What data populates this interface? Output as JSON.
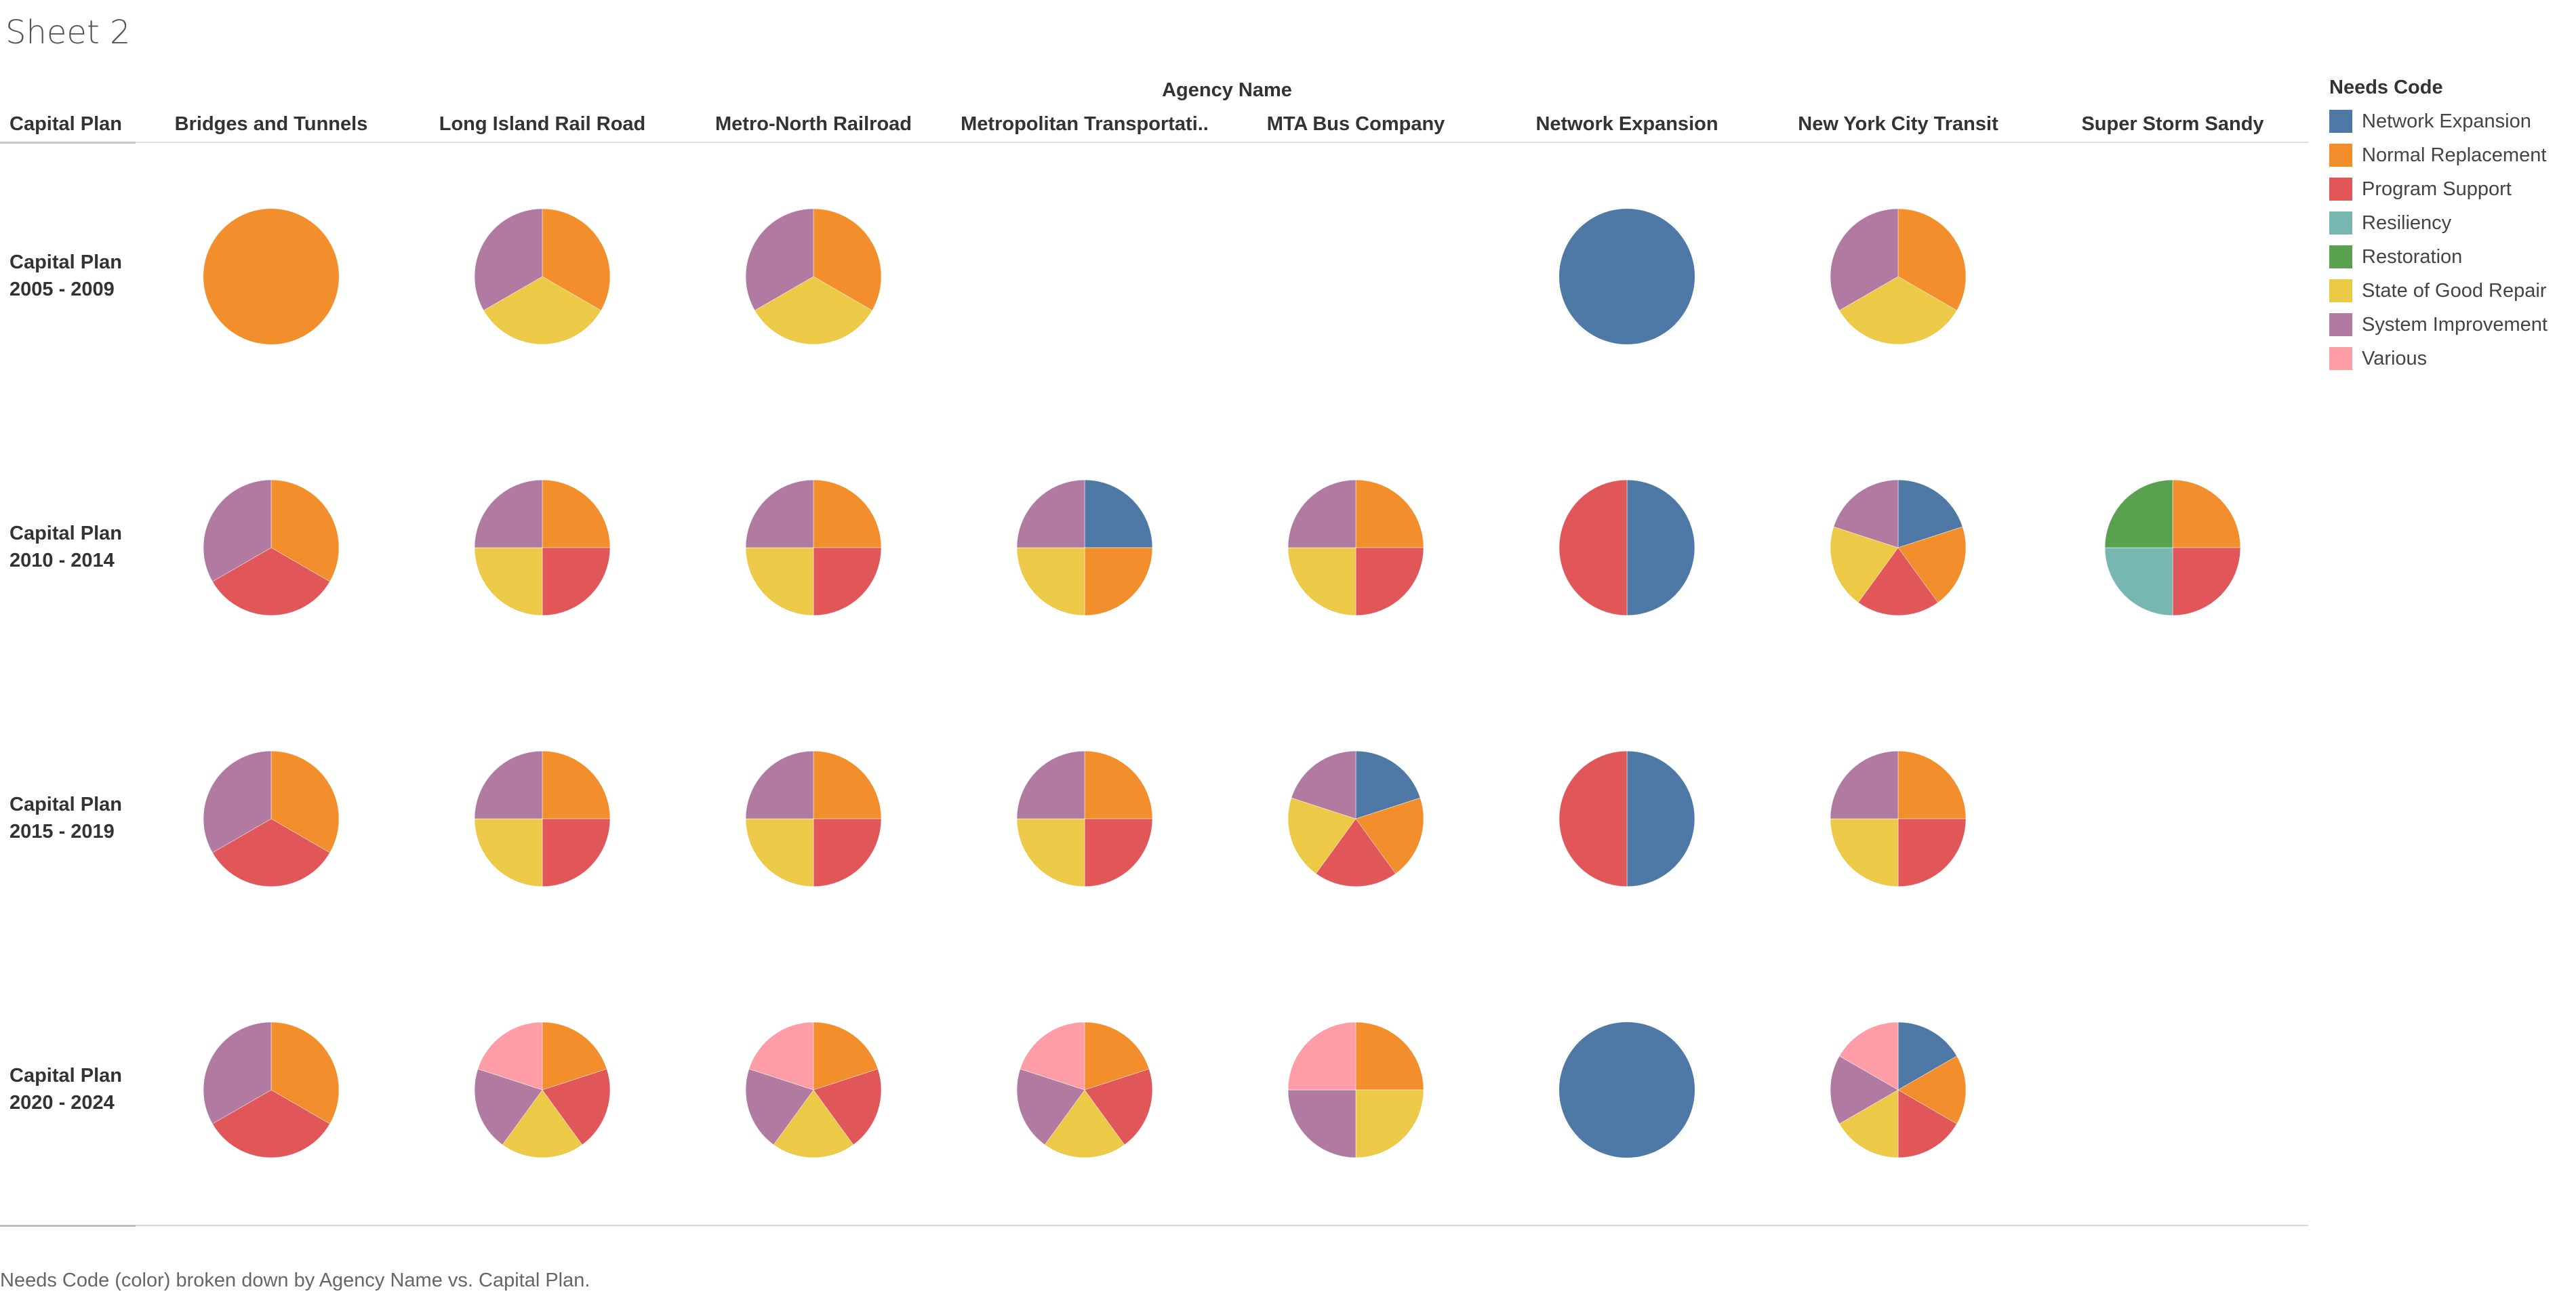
{
  "sheet_title": "Sheet 2",
  "caption": "Needs Code (color) broken down by Agency Name vs. Capital Plan.",
  "legend": {
    "title": "Needs Code",
    "items": [
      {
        "label": "Network Expansion",
        "color": "#4e79a7"
      },
      {
        "label": "Normal Replacement",
        "color": "#f28e2b"
      },
      {
        "label": "Program Support",
        "color": "#e15759"
      },
      {
        "label": "Resiliency",
        "color": "#76b7b2"
      },
      {
        "label": "Restoration",
        "color": "#59a14f"
      },
      {
        "label": "State of Good Repair",
        "color": "#edc948"
      },
      {
        "label": "System Improvement",
        "color": "#b07aa1"
      },
      {
        "label": "Various",
        "color": "#ff9da7"
      }
    ]
  },
  "chart_data": {
    "type": "pie",
    "column_group_label": "Agency Name",
    "row_header_label": "Capital Plan",
    "columns": [
      "Bridges and Tunnels",
      "Long Island Rail Road",
      "Metro-North Railroad",
      "Metropolitan Transportati..",
      "MTA Bus Company",
      "Network Expansion",
      "New York City Transit",
      "Super Storm Sandy"
    ],
    "rows": [
      {
        "line1": "Capital Plan",
        "line2": "2005 - 2009"
      },
      {
        "line1": "Capital Plan",
        "line2": "2010 - 2014"
      },
      {
        "line1": "Capital Plan",
        "line2": "2015 - 2019"
      },
      {
        "line1": "Capital Plan",
        "line2": "2020 - 2024"
      }
    ],
    "cells": [
      [
        [
          {
            "code": "Normal Replacement",
            "value": 1
          }
        ],
        [
          {
            "code": "Normal Replacement",
            "value": 1
          },
          {
            "code": "State of Good Repair",
            "value": 1
          },
          {
            "code": "System Improvement",
            "value": 1
          }
        ],
        [
          {
            "code": "Normal Replacement",
            "value": 1
          },
          {
            "code": "State of Good Repair",
            "value": 1
          },
          {
            "code": "System Improvement",
            "value": 1
          }
        ],
        [],
        [],
        [
          {
            "code": "Network Expansion",
            "value": 1
          }
        ],
        [
          {
            "code": "Normal Replacement",
            "value": 1
          },
          {
            "code": "State of Good Repair",
            "value": 1
          },
          {
            "code": "System Improvement",
            "value": 1
          }
        ],
        []
      ],
      [
        [
          {
            "code": "Normal Replacement",
            "value": 1
          },
          {
            "code": "Program Support",
            "value": 1
          },
          {
            "code": "System Improvement",
            "value": 1
          }
        ],
        [
          {
            "code": "Normal Replacement",
            "value": 1
          },
          {
            "code": "Program Support",
            "value": 1
          },
          {
            "code": "State of Good Repair",
            "value": 1
          },
          {
            "code": "System Improvement",
            "value": 1
          }
        ],
        [
          {
            "code": "Normal Replacement",
            "value": 1
          },
          {
            "code": "Program Support",
            "value": 1
          },
          {
            "code": "State of Good Repair",
            "value": 1
          },
          {
            "code": "System Improvement",
            "value": 1
          }
        ],
        [
          {
            "code": "Network Expansion",
            "value": 1
          },
          {
            "code": "Normal Replacement",
            "value": 1
          },
          {
            "code": "State of Good Repair",
            "value": 1
          },
          {
            "code": "System Improvement",
            "value": 1
          }
        ],
        [
          {
            "code": "Normal Replacement",
            "value": 1
          },
          {
            "code": "Program Support",
            "value": 1
          },
          {
            "code": "State of Good Repair",
            "value": 1
          },
          {
            "code": "System Improvement",
            "value": 1
          }
        ],
        [
          {
            "code": "Network Expansion",
            "value": 1
          },
          {
            "code": "Program Support",
            "value": 1
          }
        ],
        [
          {
            "code": "Network Expansion",
            "value": 1
          },
          {
            "code": "Normal Replacement",
            "value": 1
          },
          {
            "code": "Program Support",
            "value": 1
          },
          {
            "code": "State of Good Repair",
            "value": 1
          },
          {
            "code": "System Improvement",
            "value": 1
          }
        ],
        [
          {
            "code": "Normal Replacement",
            "value": 1
          },
          {
            "code": "Program Support",
            "value": 1
          },
          {
            "code": "Resiliency",
            "value": 1
          },
          {
            "code": "Restoration",
            "value": 1
          }
        ]
      ],
      [
        [
          {
            "code": "Normal Replacement",
            "value": 1
          },
          {
            "code": "Program Support",
            "value": 1
          },
          {
            "code": "System Improvement",
            "value": 1
          }
        ],
        [
          {
            "code": "Normal Replacement",
            "value": 1
          },
          {
            "code": "Program Support",
            "value": 1
          },
          {
            "code": "State of Good Repair",
            "value": 1
          },
          {
            "code": "System Improvement",
            "value": 1
          }
        ],
        [
          {
            "code": "Normal Replacement",
            "value": 1
          },
          {
            "code": "Program Support",
            "value": 1
          },
          {
            "code": "State of Good Repair",
            "value": 1
          },
          {
            "code": "System Improvement",
            "value": 1
          }
        ],
        [
          {
            "code": "Normal Replacement",
            "value": 1
          },
          {
            "code": "Program Support",
            "value": 1
          },
          {
            "code": "State of Good Repair",
            "value": 1
          },
          {
            "code": "System Improvement",
            "value": 1
          }
        ],
        [
          {
            "code": "Network Expansion",
            "value": 1
          },
          {
            "code": "Normal Replacement",
            "value": 1
          },
          {
            "code": "Program Support",
            "value": 1
          },
          {
            "code": "State of Good Repair",
            "value": 1
          },
          {
            "code": "System Improvement",
            "value": 1
          }
        ],
        [
          {
            "code": "Network Expansion",
            "value": 1
          },
          {
            "code": "Program Support",
            "value": 1
          }
        ],
        [
          {
            "code": "Normal Replacement",
            "value": 1
          },
          {
            "code": "Program Support",
            "value": 1
          },
          {
            "code": "State of Good Repair",
            "value": 1
          },
          {
            "code": "System Improvement",
            "value": 1
          }
        ],
        []
      ],
      [
        [
          {
            "code": "Normal Replacement",
            "value": 1
          },
          {
            "code": "Program Support",
            "value": 1
          },
          {
            "code": "System Improvement",
            "value": 1
          }
        ],
        [
          {
            "code": "Normal Replacement",
            "value": 1
          },
          {
            "code": "Program Support",
            "value": 1
          },
          {
            "code": "State of Good Repair",
            "value": 1
          },
          {
            "code": "System Improvement",
            "value": 1
          },
          {
            "code": "Various",
            "value": 1
          }
        ],
        [
          {
            "code": "Normal Replacement",
            "value": 1
          },
          {
            "code": "Program Support",
            "value": 1
          },
          {
            "code": "State of Good Repair",
            "value": 1
          },
          {
            "code": "System Improvement",
            "value": 1
          },
          {
            "code": "Various",
            "value": 1
          }
        ],
        [
          {
            "code": "Normal Replacement",
            "value": 1
          },
          {
            "code": "Program Support",
            "value": 1
          },
          {
            "code": "State of Good Repair",
            "value": 1
          },
          {
            "code": "System Improvement",
            "value": 1
          },
          {
            "code": "Various",
            "value": 1
          }
        ],
        [
          {
            "code": "Normal Replacement",
            "value": 1
          },
          {
            "code": "State of Good Repair",
            "value": 1
          },
          {
            "code": "System Improvement",
            "value": 1
          },
          {
            "code": "Various",
            "value": 1
          }
        ],
        [
          {
            "code": "Network Expansion",
            "value": 1
          }
        ],
        [
          {
            "code": "Network Expansion",
            "value": 1
          },
          {
            "code": "Normal Replacement",
            "value": 1
          },
          {
            "code": "Program Support",
            "value": 1
          },
          {
            "code": "State of Good Repair",
            "value": 1
          },
          {
            "code": "System Improvement",
            "value": 1
          },
          {
            "code": "Various",
            "value": 1
          }
        ],
        []
      ]
    ]
  }
}
